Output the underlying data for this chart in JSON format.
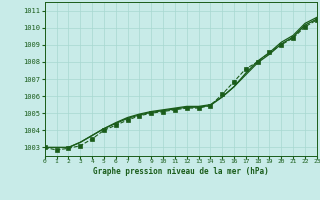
{
  "title": "Graphe pression niveau de la mer (hPa)",
  "background_color": "#c8ebe8",
  "grid_color": "#a8d8d0",
  "line_color": "#1a5c1a",
  "xlim": [
    0,
    23
  ],
  "ylim": [
    1002.5,
    1011.5
  ],
  "yticks": [
    1003,
    1004,
    1005,
    1006,
    1007,
    1008,
    1009,
    1010,
    1011
  ],
  "xticks": [
    0,
    1,
    2,
    3,
    4,
    5,
    6,
    7,
    8,
    9,
    10,
    11,
    12,
    13,
    14,
    15,
    16,
    17,
    18,
    19,
    20,
    21,
    22,
    23
  ],
  "series1": [
    1003.0,
    1003.0,
    1003.0,
    1003.3,
    1003.7,
    1004.1,
    1004.4,
    1004.7,
    1004.9,
    1005.05,
    1005.15,
    1005.25,
    1005.35,
    1005.35,
    1005.45,
    1005.95,
    1006.55,
    1007.25,
    1007.95,
    1008.45,
    1009.05,
    1009.45,
    1010.15,
    1010.5
  ],
  "series2": [
    1003.0,
    1003.0,
    1003.0,
    1003.3,
    1003.7,
    1004.1,
    1004.45,
    1004.75,
    1004.95,
    1005.1,
    1005.2,
    1005.3,
    1005.4,
    1005.4,
    1005.5,
    1005.95,
    1006.55,
    1007.35,
    1008.05,
    1008.55,
    1009.15,
    1009.55,
    1010.25,
    1010.6
  ],
  "series3_dotted": [
    1003.0,
    1002.85,
    1002.95,
    1003.1,
    1003.5,
    1004.0,
    1004.3,
    1004.6,
    1004.85,
    1005.0,
    1005.1,
    1005.2,
    1005.3,
    1005.3,
    1005.45,
    1006.1,
    1006.85,
    1007.6,
    1008.0,
    1008.55,
    1009.0,
    1009.4,
    1010.05,
    1010.45
  ]
}
